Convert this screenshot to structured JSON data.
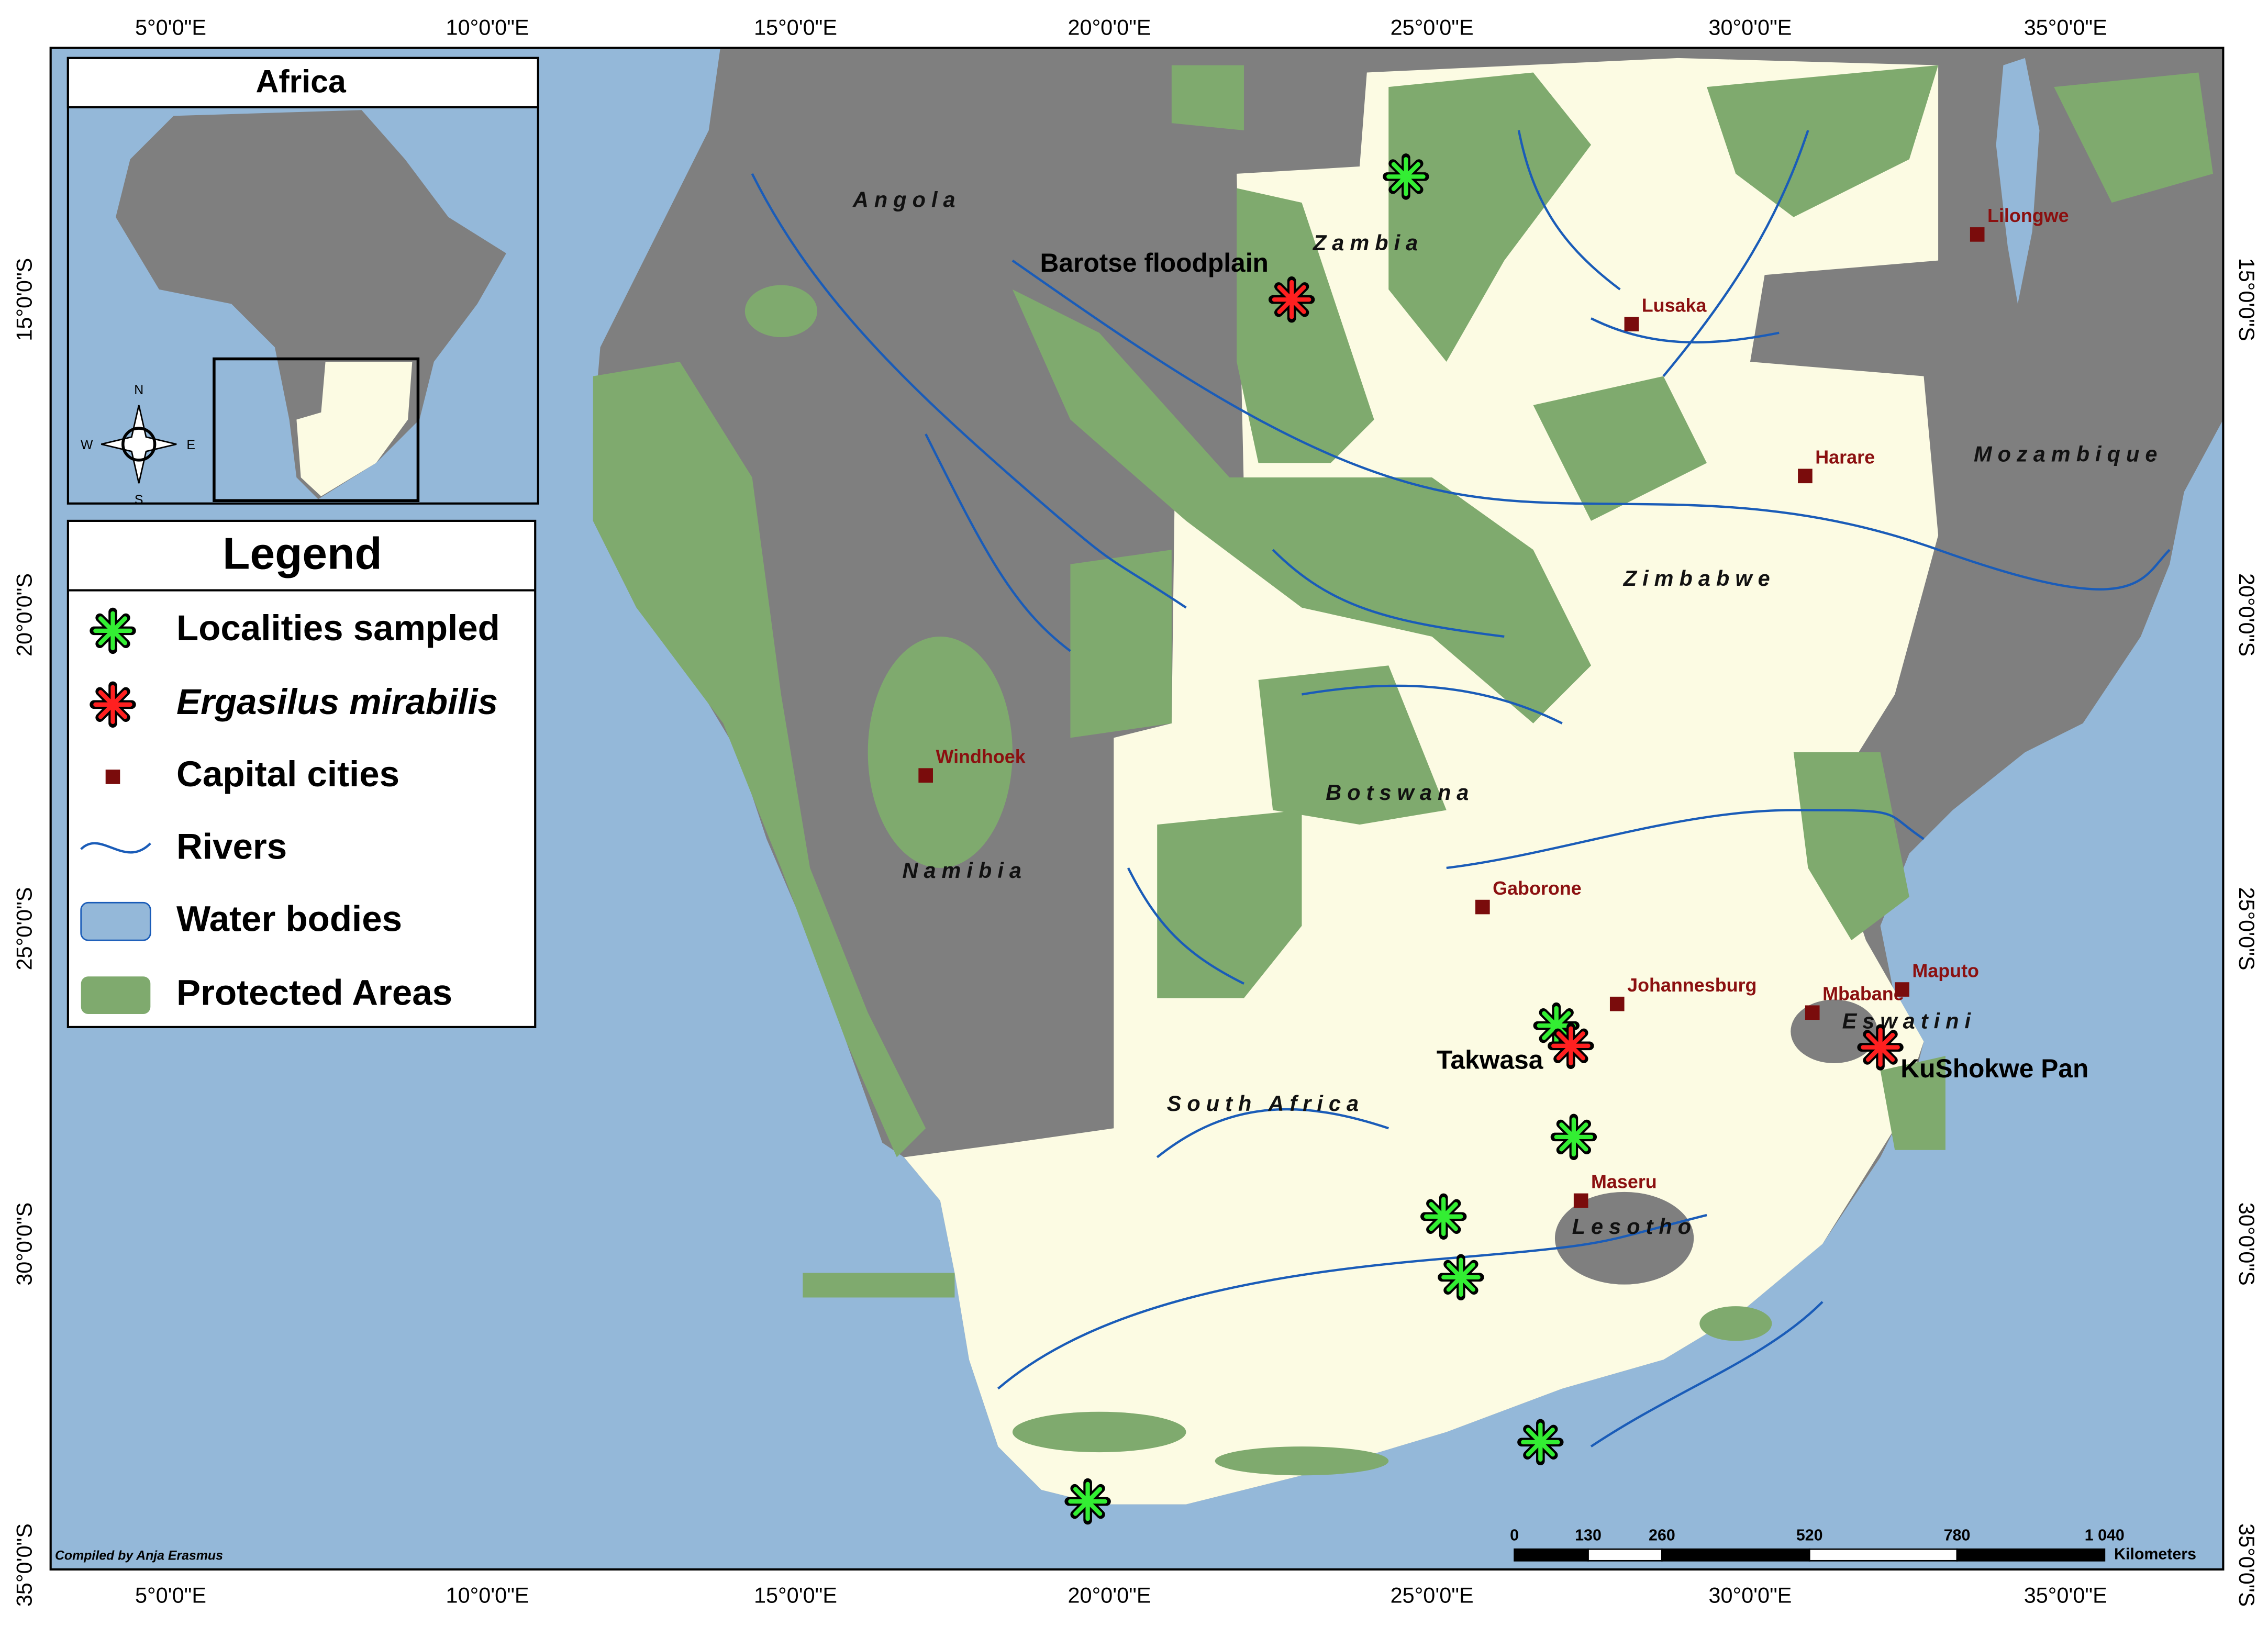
{
  "inset": {
    "title": "Africa",
    "compass": {
      "n": "N",
      "s": "S",
      "e": "E",
      "w": "W"
    }
  },
  "legend": {
    "title": "Legend",
    "items": [
      "Localities sampled",
      "Ergasilus mirabilis",
      "Capital cities",
      "Rivers",
      "Water bodies",
      "Protected Areas"
    ]
  },
  "axes": {
    "longitude_labels": [
      "5°0'0\"E",
      "10°0'0\"E",
      "15°0'0\"E",
      "20°0'0\"E",
      "25°0'0\"E",
      "30°0'0\"E",
      "35°0'0\"E"
    ],
    "latitude_labels": [
      "15°0'0\"S",
      "20°0'0\"S",
      "25°0'0\"S",
      "30°0'0\"S",
      "35°0'0\"S"
    ]
  },
  "countries": [
    "Angola",
    "Zambia",
    "Mozambique",
    "Zimbabwe",
    "Botswana",
    "Namibia",
    "South Africa",
    "Lesotho",
    "Eswatini"
  ],
  "capitals": [
    "Lilongwe",
    "Lusaka",
    "Harare",
    "Windhoek",
    "Gaborone",
    "Johannesburg",
    "Mbabane",
    "Maputo",
    "Maseru"
  ],
  "sites": [
    "Barotse floodplain",
    "Takwasa",
    "KuShokwe Pan"
  ],
  "scale_bar": {
    "labels": [
      "0",
      "130",
      "260",
      "520",
      "780",
      "1 040"
    ],
    "unit": "Kilometers"
  },
  "credit": "Compiled by Anja Erasmus"
}
